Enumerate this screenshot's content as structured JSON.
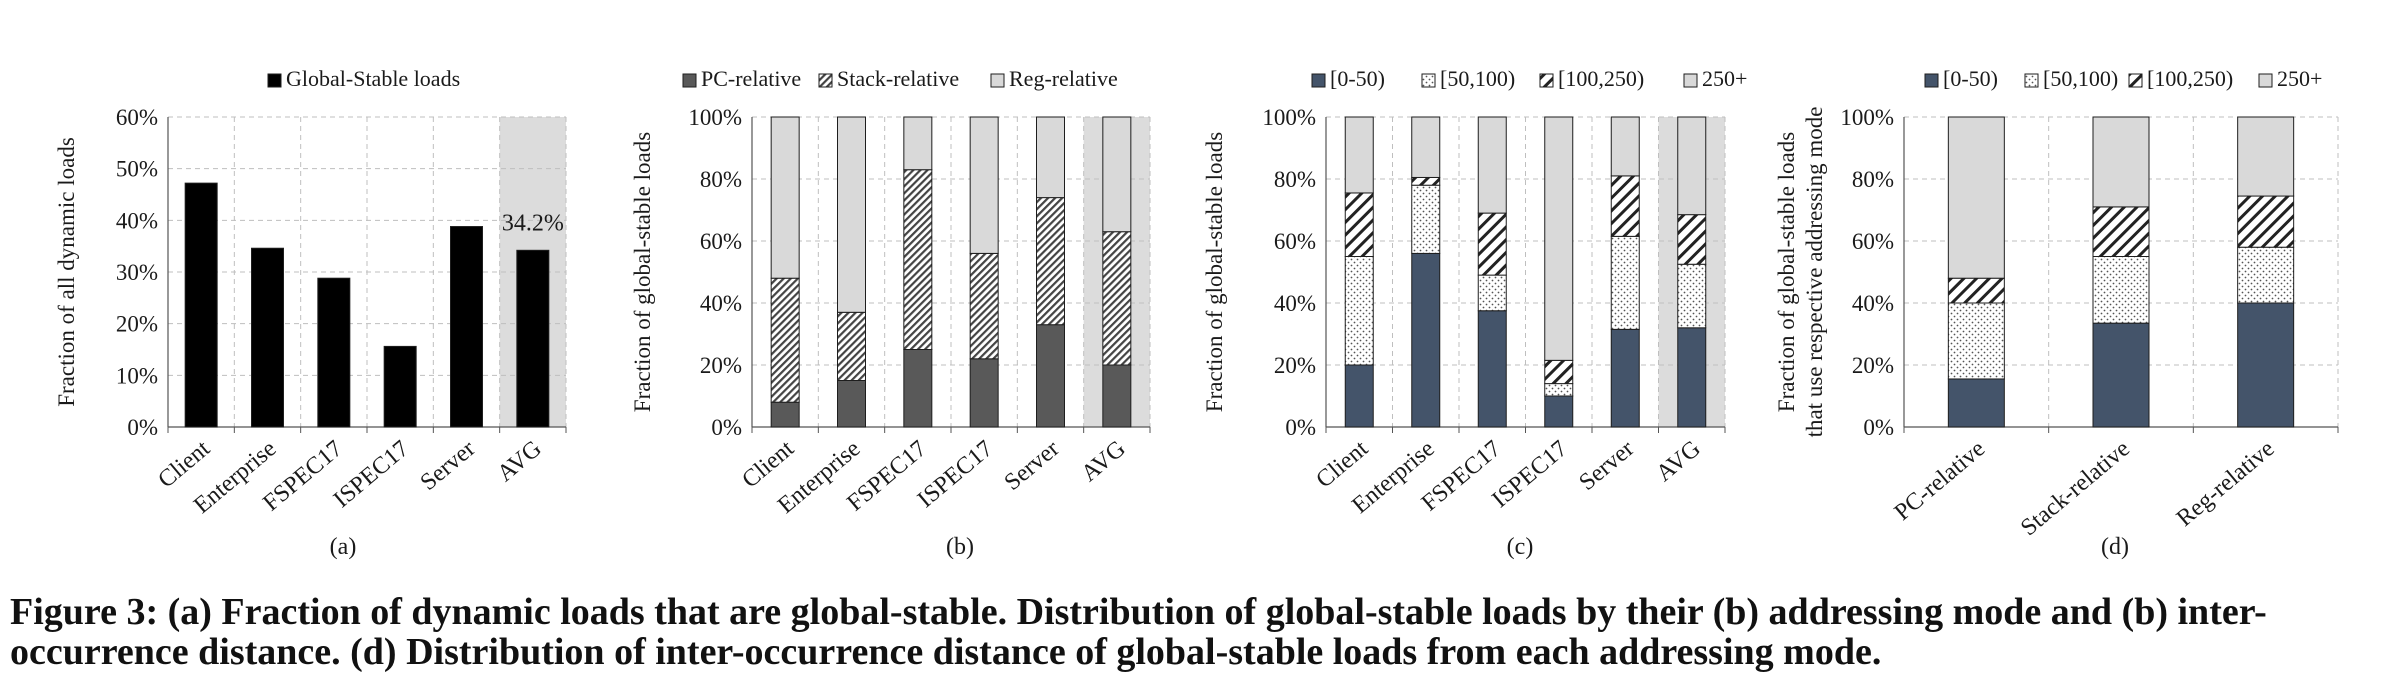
{
  "caption": "Figure 3: (a) Fraction of dynamic loads that are global-stable. Distribution of global-stable loads by their (b) addressing mode and (b) inter-occurrence distance. (d) Distribution of inter-occurrence distance of global-stable loads from each addressing mode.",
  "colors": {
    "black": "#000000",
    "dark_gray": "#595959",
    "light_gray": "#d9d9d9",
    "navy": "#44546a",
    "avg_highlight": "#dcdcdc"
  },
  "chart_data": [
    {
      "id": "a",
      "type": "bar",
      "sublabel": "(a)",
      "ylabel": "Fraction of all dynamic loads",
      "ylim": [
        0,
        60
      ],
      "yticks": [
        "0%",
        "10%",
        "20%",
        "30%",
        "40%",
        "50%",
        "60%"
      ],
      "categories": [
        "Client",
        "Enterprise",
        "FSPEC17",
        "ISPEC17",
        "Server",
        "AVG"
      ],
      "highlight_last": true,
      "grid": true,
      "legend_position": "top",
      "series": [
        {
          "name": "Global-Stable loads",
          "values": [
            47.2,
            34.6,
            28.8,
            15.6,
            38.8,
            34.2
          ]
        }
      ],
      "annotations": [
        {
          "category": "AVG",
          "text": "34.2%"
        }
      ]
    },
    {
      "id": "b",
      "type": "stacked-bar",
      "sublabel": "(b)",
      "ylabel": "Fraction of global-stable loads",
      "ylim": [
        0,
        100
      ],
      "yticks": [
        "0%",
        "20%",
        "40%",
        "60%",
        "80%",
        "100%"
      ],
      "categories": [
        "Client",
        "Enterprise",
        "FSPEC17",
        "ISPEC17",
        "Server",
        "AVG"
      ],
      "highlight_last": true,
      "grid": true,
      "legend_position": "top",
      "series": [
        {
          "name": "PC-relative",
          "values": [
            8,
            15,
            25,
            22,
            33,
            20
          ]
        },
        {
          "name": "Stack-relative",
          "values": [
            40,
            22,
            58,
            34,
            41,
            43
          ]
        },
        {
          "name": "Reg-relative",
          "values": [
            52,
            63,
            17,
            44,
            26,
            37
          ]
        }
      ]
    },
    {
      "id": "c",
      "type": "stacked-bar",
      "sublabel": "(c)",
      "ylabel": "Fraction of global-stable loads",
      "ylim": [
        0,
        100
      ],
      "yticks": [
        "0%",
        "20%",
        "40%",
        "60%",
        "80%",
        "100%"
      ],
      "categories": [
        "Client",
        "Enterprise",
        "FSPEC17",
        "ISPEC17",
        "Server",
        "AVG"
      ],
      "highlight_last": true,
      "grid": true,
      "legend_position": "top",
      "series": [
        {
          "name": "[0-50)",
          "values": [
            20,
            56,
            37.5,
            10,
            31.5,
            32
          ]
        },
        {
          "name": "[50,100)",
          "values": [
            35,
            22,
            11.5,
            4,
            30,
            20.5
          ]
        },
        {
          "name": "[100,250)",
          "values": [
            20.5,
            2.5,
            20,
            7.5,
            19.5,
            16
          ]
        },
        {
          "name": "250+",
          "values": [
            24.5,
            19.5,
            31,
            78.5,
            19,
            31.5
          ]
        }
      ]
    },
    {
      "id": "d",
      "type": "stacked-bar",
      "sublabel": "(d)",
      "ylabel": [
        "Fraction of global-stable loads",
        "that use respective addressing mode"
      ],
      "ylim": [
        0,
        100
      ],
      "yticks": [
        "0%",
        "20%",
        "40%",
        "60%",
        "80%",
        "100%"
      ],
      "categories": [
        "PC-relative",
        "Stack-relative",
        "Reg-relative"
      ],
      "highlight_last": false,
      "grid": true,
      "legend_position": "top",
      "series": [
        {
          "name": "[0-50)",
          "values": [
            15.5,
            33.5,
            40
          ]
        },
        {
          "name": "[50,100)",
          "values": [
            24.5,
            21.5,
            18
          ]
        },
        {
          "name": "[100,250)",
          "values": [
            8,
            16,
            16.5
          ]
        },
        {
          "name": "250+",
          "values": [
            52,
            29,
            25.5
          ]
        }
      ]
    }
  ]
}
